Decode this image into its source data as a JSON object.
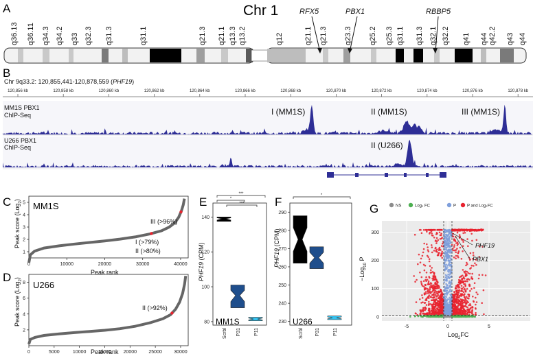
{
  "panels": {
    "A": "A",
    "B": "B",
    "C": "C",
    "D": "D",
    "E": "E",
    "F": "F",
    "G": "G"
  },
  "panel_a": {
    "title": "Chr 1",
    "p_bands": [
      "q36.13",
      "q36.11",
      "q34.3",
      "q34.2",
      "q33",
      "q32.3",
      "q31.3",
      "q31.1",
      "q21.3",
      "q21.1",
      "q13.3",
      "q13.2"
    ],
    "q_bands": [
      "q12",
      "q21.1",
      "q21.3",
      "q23.3",
      "q25.2",
      "q25.3",
      "q31.1",
      "q31.3",
      "q32.1",
      "q32.2",
      "q41",
      "q44",
      "q42.2",
      "q43",
      "q44"
    ],
    "genes": [
      "RFX5",
      "PBX1",
      "RBBP5"
    ]
  },
  "panel_b": {
    "region": "Chr 9q33.2: 120,855,441-120,878,559 (",
    "region_gene": "PHF19",
    "region_close": ")",
    "ticks": [
      "120,856 kb",
      "120,858 kb",
      "120,860 kb",
      "120,862 kb",
      "120,864 kb",
      "120,866 kb",
      "120,868 kb",
      "120,870 kb",
      "120,872 kb",
      "120,874 kb",
      "120,876 kb",
      "120,878 kb"
    ],
    "track1_line1": "MM1S PBX1",
    "track1_line2": "ChIP-Seq",
    "track2_line1": "U266 PBX1",
    "track2_line2": "ChIP-Seq",
    "peaks_mm1s": [
      "I (MM1S)",
      "II (MM1S)",
      "III (MM1S)"
    ],
    "peak_u266": "II (U266)"
  },
  "chart_data": [
    {
      "panel": "C",
      "type": "line",
      "title": "MM1S",
      "xlabel": "Peak rank",
      "ylabel": "Peak score (Log2)",
      "xticks": [
        "0",
        "10000",
        "20000",
        "30000",
        "40000"
      ],
      "yticks": [
        "1",
        "2",
        "3",
        "4",
        "5"
      ],
      "xlim": [
        0,
        42000
      ],
      "ylim": [
        0.5,
        5.5
      ],
      "x": [
        0,
        400,
        1500,
        4000,
        8000,
        12000,
        16000,
        20000,
        24000,
        28000,
        32000,
        35000,
        37000,
        38500,
        39500,
        40200,
        40700,
        41000
      ],
      "y": [
        0.1,
        0.75,
        1.05,
        1.3,
        1.48,
        1.62,
        1.75,
        1.88,
        2.02,
        2.2,
        2.45,
        2.7,
        3.0,
        3.35,
        3.8,
        4.3,
        4.8,
        5.3
      ],
      "annotations": [
        "III (>96%)",
        "I (>79%)",
        "II (>80%)"
      ],
      "highlight_x": [
        32300,
        40100
      ]
    },
    {
      "panel": "D",
      "type": "line",
      "title": "U266",
      "xlabel": "Peak rank",
      "ylabel": "Peak score (Log2)",
      "xticks": [
        "0",
        "5000",
        "10000",
        "15000",
        "20000",
        "25000",
        "30000"
      ],
      "yticks": [
        "2",
        "4",
        "6",
        "8"
      ],
      "xlim": [
        0,
        31500
      ],
      "ylim": [
        0,
        9
      ],
      "x": [
        0,
        300,
        1200,
        3000,
        6000,
        9000,
        12000,
        15000,
        18000,
        21000,
        24000,
        26500,
        28000,
        29000,
        29800,
        30400,
        30800,
        31000
      ],
      "y": [
        0.2,
        0.8,
        1.05,
        1.3,
        1.5,
        1.65,
        1.8,
        1.95,
        2.15,
        2.45,
        2.9,
        3.4,
        3.9,
        4.6,
        5.5,
        6.6,
        7.8,
        8.8
      ],
      "annotations": [
        "II (>92%)"
      ],
      "highlight_x": [
        28300
      ]
    },
    {
      "panel": "E",
      "type": "boxplot",
      "title": "MM1S",
      "ylabel": "PHF19 (CPM)",
      "ylabel_gene": "PHF19",
      "ylabel_unit": " (CPM)",
      "categories": [
        "Scrbl",
        "P31",
        "P11"
      ],
      "yticks": [
        "80",
        "100",
        "120",
        "140"
      ],
      "ylim": [
        78,
        148
      ],
      "values": [
        [
          137.5,
          139,
          140
        ],
        [
          88,
          95,
          101
        ],
        [
          80.5,
          81.5,
          82.5
        ]
      ],
      "colors": [
        "#000000",
        "#1f4e8c",
        "#33c2f0"
      ],
      "significance": [
        "***",
        "*",
        "***"
      ]
    },
    {
      "panel": "F",
      "type": "boxplot",
      "title": "U266",
      "ylabel": "PHF19 (CPM)",
      "ylabel_gene": "PHF19",
      "ylabel_unit": " (CPM)",
      "categories": [
        "Scrbl",
        "P31",
        "P11"
      ],
      "yticks": [
        "230",
        "240",
        "250",
        "260",
        "270",
        "280",
        "290"
      ],
      "ylim": [
        228,
        295
      ],
      "values": [
        [
          262,
          275,
          288
        ],
        [
          259,
          265,
          271
        ],
        [
          231,
          232,
          233
        ]
      ],
      "colors": [
        "#000000",
        "#1f4e8c",
        "#33c2f0"
      ],
      "significance": [
        "*"
      ]
    },
    {
      "panel": "G",
      "type": "scatter",
      "xlabel": "Log2FC",
      "xlabel_base": "Log",
      "xlabel_sub": "2",
      "xlabel_tail": "FC",
      "ylabel": "-Log10 P",
      "ylabel_base": "−Log",
      "ylabel_sub": "10",
      "ylabel_tail": " P",
      "xticks": [
        "-5",
        "0",
        "5"
      ],
      "yticks": [
        "0",
        "100",
        "200",
        "300"
      ],
      "xlim": [
        -8,
        10
      ],
      "ylim": [
        -15,
        340
      ],
      "legend": [
        "NS",
        "Log₂ FC",
        "P",
        "P and Log₂FC"
      ],
      "legend_colors": [
        "#8c8c8c",
        "#4caf50",
        "#7f9fdb",
        "#e8222e"
      ],
      "labels": [
        "PHF19",
        "PBX1"
      ],
      "labeled_points": [
        {
          "gene": "PHF19",
          "x": 0.6,
          "y": 296
        },
        {
          "gene": "PBX1",
          "x": 0.9,
          "y": 286
        }
      ]
    }
  ]
}
